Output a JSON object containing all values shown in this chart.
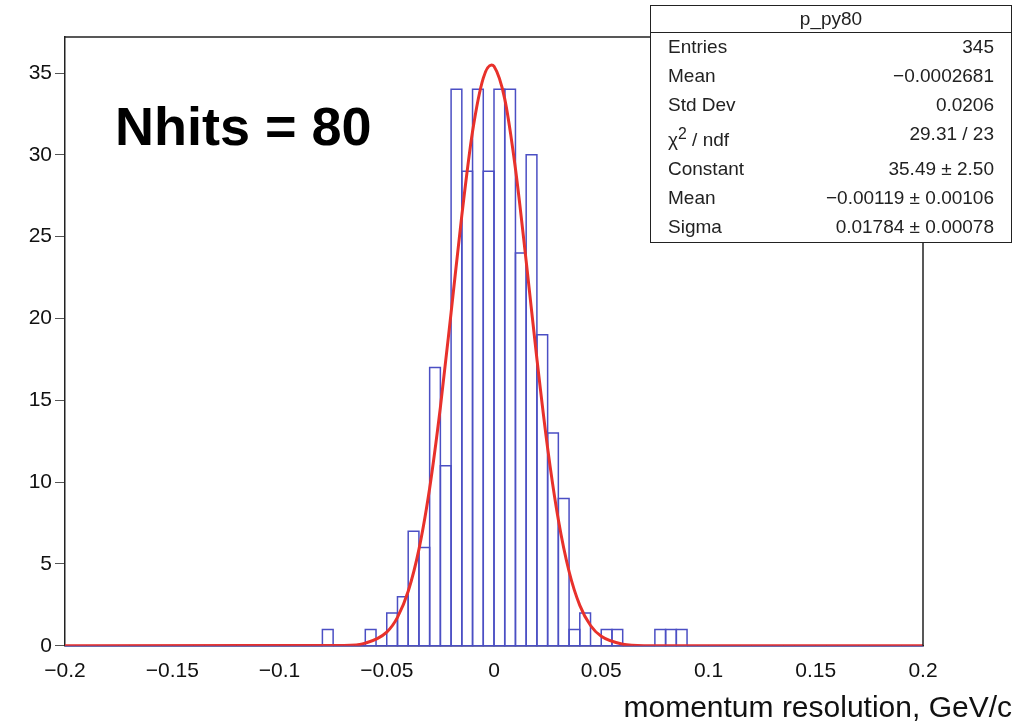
{
  "chart_data": {
    "type": "histogram",
    "xlabel": "momentum resolution, GeV/c",
    "bins": [
      -0.2,
      -0.195,
      -0.19,
      -0.185,
      -0.18,
      -0.175,
      -0.17,
      -0.165,
      -0.16,
      -0.155,
      -0.15,
      -0.145,
      -0.14,
      -0.135,
      -0.13,
      -0.125,
      -0.12,
      -0.115,
      -0.11,
      -0.105,
      -0.1,
      -0.095,
      -0.09,
      -0.085,
      -0.08,
      -0.075,
      -0.07,
      -0.065,
      -0.06,
      -0.055,
      -0.05,
      -0.045,
      -0.04,
      -0.035,
      -0.03,
      -0.025,
      -0.02,
      -0.015,
      -0.01,
      -0.005,
      0,
      0.005,
      0.01,
      0.015,
      0.02,
      0.025,
      0.03,
      0.035,
      0.04,
      0.045,
      0.05,
      0.055,
      0.06,
      0.065,
      0.07,
      0.075,
      0.08,
      0.085,
      0.09,
      0.095,
      0.1,
      0.105,
      0.11,
      0.115,
      0.12,
      0.125,
      0.13,
      0.135,
      0.14,
      0.145,
      0.15,
      0.155,
      0.16,
      0.165,
      0.17,
      0.175,
      0.18,
      0.185,
      0.19,
      0.195,
      0.2
    ],
    "values": [
      0,
      0,
      0,
      0,
      0,
      0,
      0,
      0,
      0,
      0,
      0,
      0,
      0,
      0,
      0,
      0,
      0,
      0,
      0,
      0,
      0,
      0,
      0,
      0,
      1,
      0,
      0,
      0,
      1,
      0,
      2,
      3,
      7,
      6,
      17,
      11,
      34,
      29,
      34,
      29,
      34,
      34,
      24,
      30,
      19,
      13,
      9,
      1,
      2,
      0,
      1,
      1,
      0,
      0,
      0,
      1,
      1,
      1,
      0,
      0,
      0,
      0,
      0,
      0,
      0,
      0,
      0,
      0,
      0,
      0,
      0,
      0,
      0,
      0,
      0,
      0,
      0,
      0,
      0,
      0
    ],
    "color": "#4b4fc4",
    "series": [
      {
        "type": "line",
        "color": "#e8312b",
        "x": [
          -0.2,
          -0.07,
          -0.06,
          -0.05,
          -0.045,
          -0.04,
          -0.035,
          -0.03,
          -0.025,
          -0.02,
          -0.015,
          -0.01,
          -0.005,
          -0.00119,
          0,
          0.005,
          0.01,
          0.015,
          0.02,
          0.025,
          0.03,
          0.035,
          0.04,
          0.045,
          0.05,
          0.06,
          0.07,
          0.2
        ],
        "values": [
          0,
          0.02,
          0.16,
          0.84,
          1.74,
          3.33,
          5.89,
          9.63,
          14.57,
          20.36,
          26.3,
          31.42,
          34.69,
          35.49,
          35.41,
          33.42,
          29.15,
          23.51,
          17.53,
          12.08,
          7.7,
          4.54,
          2.47,
          1.24,
          0.58,
          0.1,
          0.01,
          0
        ]
      }
    ],
    "xlim": [
      -0.2,
      0.2
    ],
    "xticks": [
      {
        "value": -0.2,
        "label": "−0.2"
      },
      {
        "value": -0.15,
        "label": "−0.15"
      },
      {
        "value": -0.1,
        "label": "−0.1"
      },
      {
        "value": -0.05,
        "label": "−0.05"
      },
      0,
      0.05,
      0.1,
      0.15,
      0.2
    ],
    "ylim": [
      0,
      37.2
    ],
    "yticks": [
      0,
      5,
      10,
      15,
      20,
      25,
      30,
      35
    ],
    "grid": false,
    "legend": false,
    "annotations": [
      "Nhits = 80",
      "p_py80",
      "Entries",
      "345",
      "Mean",
      "−0.0002681",
      "Std Dev",
      "0.0206",
      "χ$^{2}$ / ndf",
      "29.31 / 23",
      "Constant",
      "35.49 ± 2.50",
      "Mean",
      "−0.00119 ± 0.00106",
      "Sigma",
      "0.01784 ± 0.00078"
    ]
  }
}
